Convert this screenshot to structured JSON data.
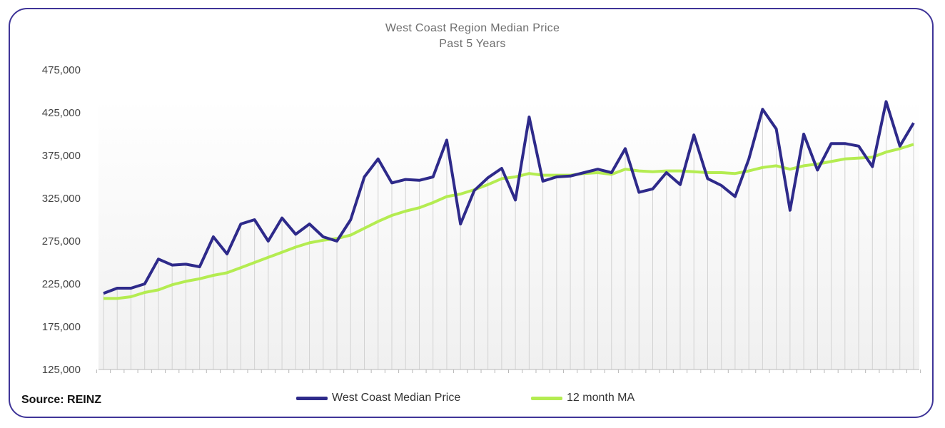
{
  "title": "West Coast Region Median Price",
  "subtitle": "Past 5 Years",
  "source": "Source: REINZ",
  "colors": {
    "price": "#2e2a8a",
    "ma": "#b4ec51",
    "frame": "#3f3598",
    "fill": "#e6e6e6"
  },
  "chart_data": {
    "type": "line",
    "title": "West Coast Region Median Price",
    "subtitle": "Past 5 Years",
    "ylim": [
      125000,
      475000
    ],
    "yticks": [
      "125,000",
      "175,000",
      "225,000",
      "275,000",
      "325,000",
      "375,000",
      "425,000",
      "475,000"
    ],
    "ytick_values": [
      125000,
      175000,
      225000,
      275000,
      325000,
      375000,
      425000,
      475000
    ],
    "grid": false,
    "legend_position": "bottom-center",
    "series": [
      {
        "name": "West Coast Median Price",
        "color": "#2e2a8a",
        "values": [
          214000,
          220000,
          220000,
          225000,
          254000,
          247000,
          248000,
          245000,
          280000,
          260000,
          295000,
          300000,
          275000,
          302000,
          283000,
          295000,
          280000,
          275000,
          300000,
          350000,
          371000,
          343000,
          347000,
          346000,
          350000,
          393000,
          295000,
          334000,
          349000,
          360000,
          323000,
          420000,
          345000,
          350000,
          351000,
          355000,
          359000,
          355000,
          383000,
          332000,
          336000,
          355000,
          341000,
          399000,
          348000,
          340000,
          327000,
          371000,
          429000,
          406000,
          311000,
          400000,
          358000,
          389000,
          389000,
          386000,
          362000,
          438000,
          386000,
          413000
        ]
      },
      {
        "name": "12 month MA",
        "color": "#b4ec51",
        "values": [
          208000,
          208000,
          210000,
          215000,
          218000,
          224000,
          228000,
          231000,
          235000,
          238000,
          244000,
          250000,
          256000,
          262000,
          268000,
          273000,
          276000,
          278000,
          282000,
          290000,
          298000,
          305000,
          310000,
          314000,
          320000,
          327000,
          330000,
          335000,
          341000,
          348000,
          350000,
          354000,
          352000,
          352000,
          352000,
          354000,
          355000,
          353000,
          359000,
          357000,
          356000,
          357000,
          357000,
          356000,
          355000,
          355000,
          354000,
          357000,
          361000,
          363000,
          359000,
          363000,
          365000,
          368000,
          371000,
          372000,
          373000,
          379000,
          383000,
          388000
        ]
      }
    ]
  }
}
